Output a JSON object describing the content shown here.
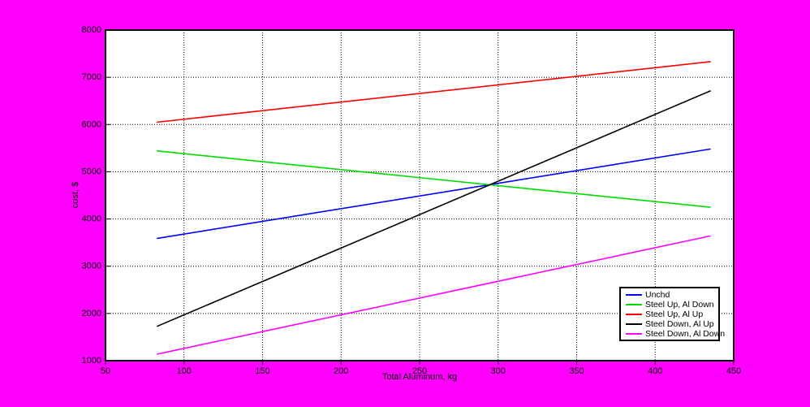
{
  "figure": {
    "background_color": "#FF00FF",
    "plot_background_color": "#FFFFFF",
    "axis_color": "#000000",
    "grid_color": "#000000",
    "grid_style": "dotted"
  },
  "chart_data": {
    "type": "line",
    "title": "",
    "xlabel": "Total Aluminum, kg",
    "ylabel": "cost, $",
    "xlim": [
      50,
      450
    ],
    "ylim": [
      1000,
      8000
    ],
    "xticks": [
      50,
      100,
      150,
      200,
      250,
      300,
      350,
      400,
      450
    ],
    "yticks": [
      1000,
      2000,
      3000,
      4000,
      5000,
      6000,
      7000,
      8000
    ],
    "grid": true,
    "legend": {
      "position": "inside-bottom-right",
      "entries": [
        "Unchd",
        "Steel Up, Al Down",
        "Steel Up, Al Up",
        "Steel Down, Al Up",
        "Steel Down, Al Down"
      ]
    },
    "series": [
      {
        "name": "Unchd",
        "color": "#0000FF",
        "x": [
          83,
          435
        ],
        "y": [
          3590,
          5480
        ]
      },
      {
        "name": "Steel Up, Al Down",
        "color": "#00DC00",
        "x": [
          83,
          435
        ],
        "y": [
          5440,
          4250
        ]
      },
      {
        "name": "Steel Up, Al Up",
        "color": "#FF0000",
        "x": [
          83,
          435
        ],
        "y": [
          6050,
          7330
        ]
      },
      {
        "name": "Steel Down, Al Up",
        "color": "#000000",
        "x": [
          83,
          435
        ],
        "y": [
          1730,
          6710
        ]
      },
      {
        "name": "Steel Down, Al Down",
        "color": "#FF00FF",
        "x": [
          83,
          435
        ],
        "y": [
          1140,
          3640
        ]
      }
    ]
  }
}
